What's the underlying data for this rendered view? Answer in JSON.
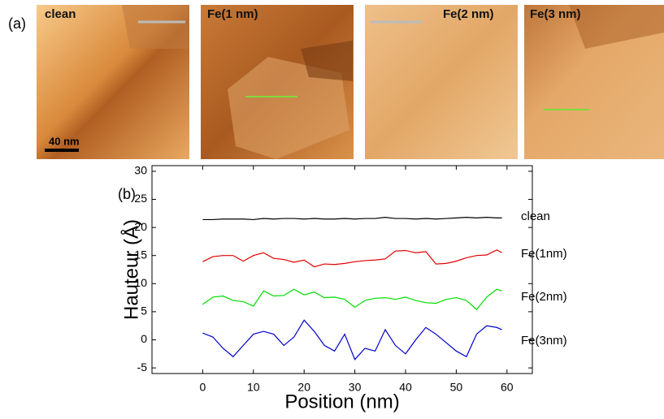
{
  "panel_a": {
    "label": "(a)",
    "images": [
      {
        "label": "clean",
        "scale_bar": "40 nm"
      },
      {
        "label": "Fe(1 nm)"
      },
      {
        "label": "Fe(2 nm)"
      },
      {
        "label": "Fe(3 nm)"
      }
    ]
  },
  "chart_data": {
    "type": "line",
    "panel_label": "(b)",
    "x_label": "Position (nm)",
    "y_label": "Hauteur (Å)",
    "xlim": [
      -10,
      65
    ],
    "ylim": [
      -6,
      31
    ],
    "xticks": [
      0,
      10,
      20,
      30,
      40,
      50,
      60
    ],
    "yticks": [
      -5,
      0,
      5,
      10,
      15,
      20,
      25,
      30
    ],
    "x": [
      0,
      2,
      4,
      6,
      8,
      10,
      12,
      14,
      16,
      18,
      20,
      22,
      24,
      26,
      28,
      30,
      32,
      34,
      36,
      38,
      40,
      42,
      44,
      46,
      48,
      50,
      52,
      54,
      56,
      58,
      59
    ],
    "series": [
      {
        "name": "clean",
        "color": "#000000",
        "values": [
          21.4,
          21.4,
          21.5,
          21.5,
          21.5,
          21.4,
          21.6,
          21.5,
          21.6,
          21.6,
          21.5,
          21.6,
          21.5,
          21.5,
          21.6,
          21.5,
          21.6,
          21.6,
          21.8,
          21.6,
          21.6,
          21.5,
          21.6,
          21.5,
          21.6,
          21.7,
          21.8,
          21.7,
          21.8,
          21.7,
          21.7
        ]
      },
      {
        "name": "Fe(1nm)",
        "color": "#e00000",
        "values": [
          13.9,
          14.8,
          15.0,
          15.0,
          14.0,
          15.0,
          15.5,
          14.5,
          14.3,
          13.8,
          14.2,
          13.0,
          13.5,
          13.4,
          13.6,
          13.9,
          14.1,
          14.2,
          14.4,
          15.8,
          15.9,
          15.5,
          15.7,
          13.5,
          13.6,
          14.0,
          14.6,
          15.0,
          15.1,
          16.0,
          15.5
        ]
      },
      {
        "name": "Fe(2nm)",
        "color": "#00dd00",
        "values": [
          6.3,
          7.6,
          7.8,
          7.0,
          6.8,
          6.0,
          8.7,
          7.8,
          7.9,
          9.0,
          8.0,
          8.5,
          7.5,
          7.6,
          7.2,
          5.8,
          7.0,
          7.4,
          7.5,
          7.2,
          7.6,
          7.0,
          6.6,
          6.5,
          7.2,
          7.5,
          7.0,
          5.4,
          7.6,
          9.0,
          8.7
        ]
      },
      {
        "name": "Fe(3nm)",
        "color": "#0000cc",
        "values": [
          1.2,
          0.5,
          -1.5,
          -3.0,
          -1.0,
          1.0,
          1.5,
          1.0,
          -1.0,
          0.5,
          3.5,
          1.5,
          -1.0,
          -2.0,
          1.0,
          -3.5,
          -1.5,
          -2.0,
          1.8,
          -1.0,
          -2.5,
          0.0,
          2.2,
          1.0,
          -0.5,
          -2.0,
          -3.0,
          1.0,
          2.5,
          2.2,
          1.8
        ]
      }
    ]
  }
}
